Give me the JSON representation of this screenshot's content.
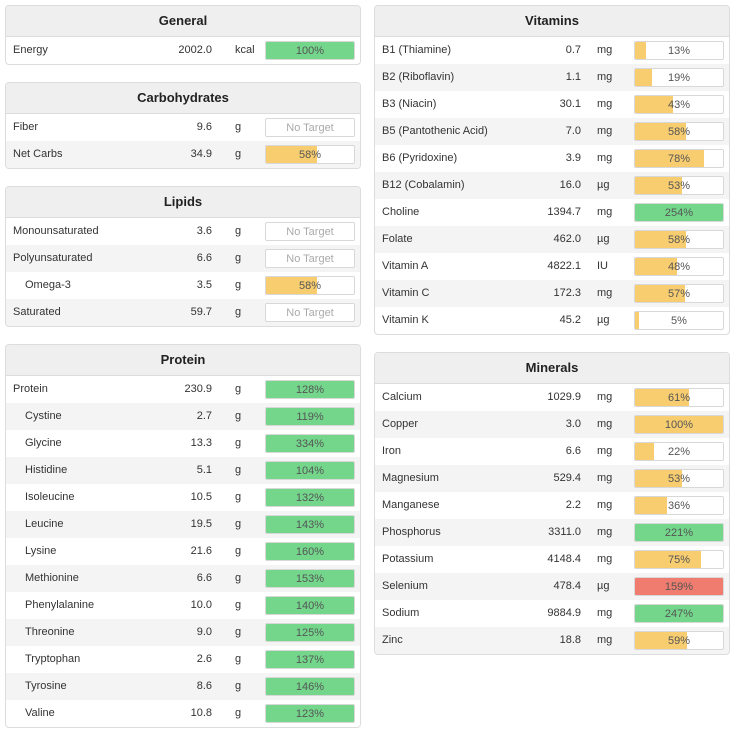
{
  "colors": {
    "green": "#73d68b",
    "yellow": "#f7cd70",
    "red": "#ef7c6e",
    "empty": "#ffffff"
  },
  "panels": [
    {
      "id": "general",
      "title": "General",
      "col": "left",
      "rows": [
        {
          "name": "Energy",
          "value": "2002.0",
          "unit": "kcal",
          "pct": "100%",
          "level": 100,
          "color": "green",
          "indent": false
        }
      ]
    },
    {
      "id": "carbohydrates",
      "title": "Carbohydrates",
      "col": "left",
      "rows": [
        {
          "name": "Fiber",
          "value": "9.6",
          "unit": "g",
          "pct": "No Target",
          "level": 0,
          "color": "empty",
          "indent": false
        },
        {
          "name": "Net Carbs",
          "value": "34.9",
          "unit": "g",
          "pct": "58%",
          "level": 58,
          "color": "yellow",
          "indent": false
        }
      ]
    },
    {
      "id": "lipids",
      "title": "Lipids",
      "col": "left",
      "rows": [
        {
          "name": "Monounsaturated",
          "value": "3.6",
          "unit": "g",
          "pct": "No Target",
          "level": 0,
          "color": "empty",
          "indent": false
        },
        {
          "name": "Polyunsaturated",
          "value": "6.6",
          "unit": "g",
          "pct": "No Target",
          "level": 0,
          "color": "empty",
          "indent": false
        },
        {
          "name": "Omega-3",
          "value": "3.5",
          "unit": "g",
          "pct": "58%",
          "level": 58,
          "color": "yellow",
          "indent": true
        },
        {
          "name": "Saturated",
          "value": "59.7",
          "unit": "g",
          "pct": "No Target",
          "level": 0,
          "color": "empty",
          "indent": false
        }
      ]
    },
    {
      "id": "protein",
      "title": "Protein",
      "col": "left",
      "rows": [
        {
          "name": "Protein",
          "value": "230.9",
          "unit": "g",
          "pct": "128%",
          "level": 100,
          "color": "green",
          "indent": false
        },
        {
          "name": "Cystine",
          "value": "2.7",
          "unit": "g",
          "pct": "119%",
          "level": 100,
          "color": "green",
          "indent": true
        },
        {
          "name": "Glycine",
          "value": "13.3",
          "unit": "g",
          "pct": "334%",
          "level": 100,
          "color": "green",
          "indent": true
        },
        {
          "name": "Histidine",
          "value": "5.1",
          "unit": "g",
          "pct": "104%",
          "level": 100,
          "color": "green",
          "indent": true
        },
        {
          "name": "Isoleucine",
          "value": "10.5",
          "unit": "g",
          "pct": "132%",
          "level": 100,
          "color": "green",
          "indent": true
        },
        {
          "name": "Leucine",
          "value": "19.5",
          "unit": "g",
          "pct": "143%",
          "level": 100,
          "color": "green",
          "indent": true
        },
        {
          "name": "Lysine",
          "value": "21.6",
          "unit": "g",
          "pct": "160%",
          "level": 100,
          "color": "green",
          "indent": true
        },
        {
          "name": "Methionine",
          "value": "6.6",
          "unit": "g",
          "pct": "153%",
          "level": 100,
          "color": "green",
          "indent": true
        },
        {
          "name": "Phenylalanine",
          "value": "10.0",
          "unit": "g",
          "pct": "140%",
          "level": 100,
          "color": "green",
          "indent": true
        },
        {
          "name": "Threonine",
          "value": "9.0",
          "unit": "g",
          "pct": "125%",
          "level": 100,
          "color": "green",
          "indent": true
        },
        {
          "name": "Tryptophan",
          "value": "2.6",
          "unit": "g",
          "pct": "137%",
          "level": 100,
          "color": "green",
          "indent": true
        },
        {
          "name": "Tyrosine",
          "value": "8.6",
          "unit": "g",
          "pct": "146%",
          "level": 100,
          "color": "green",
          "indent": true
        },
        {
          "name": "Valine",
          "value": "10.8",
          "unit": "g",
          "pct": "123%",
          "level": 100,
          "color": "green",
          "indent": true
        }
      ]
    },
    {
      "id": "vitamins",
      "title": "Vitamins",
      "col": "right",
      "rows": [
        {
          "name": "B1 (Thiamine)",
          "value": "0.7",
          "unit": "mg",
          "pct": "13%",
          "level": 13,
          "color": "yellow",
          "indent": false
        },
        {
          "name": "B2 (Riboflavin)",
          "value": "1.1",
          "unit": "mg",
          "pct": "19%",
          "level": 19,
          "color": "yellow",
          "indent": false
        },
        {
          "name": "B3 (Niacin)",
          "value": "30.1",
          "unit": "mg",
          "pct": "43%",
          "level": 43,
          "color": "yellow",
          "indent": false
        },
        {
          "name": "B5 (Pantothenic Acid)",
          "value": "7.0",
          "unit": "mg",
          "pct": "58%",
          "level": 58,
          "color": "yellow",
          "indent": false
        },
        {
          "name": "B6 (Pyridoxine)",
          "value": "3.9",
          "unit": "mg",
          "pct": "78%",
          "level": 78,
          "color": "yellow",
          "indent": false
        },
        {
          "name": "B12 (Cobalamin)",
          "value": "16.0",
          "unit": "µg",
          "pct": "53%",
          "level": 53,
          "color": "yellow",
          "indent": false
        },
        {
          "name": "Choline",
          "value": "1394.7",
          "unit": "mg",
          "pct": "254%",
          "level": 100,
          "color": "green",
          "indent": false
        },
        {
          "name": "Folate",
          "value": "462.0",
          "unit": "µg",
          "pct": "58%",
          "level": 58,
          "color": "yellow",
          "indent": false
        },
        {
          "name": "Vitamin A",
          "value": "4822.1",
          "unit": "IU",
          "pct": "48%",
          "level": 48,
          "color": "yellow",
          "indent": false
        },
        {
          "name": "Vitamin C",
          "value": "172.3",
          "unit": "mg",
          "pct": "57%",
          "level": 57,
          "color": "yellow",
          "indent": false
        },
        {
          "name": "Vitamin K",
          "value": "45.2",
          "unit": "µg",
          "pct": "5%",
          "level": 5,
          "color": "yellow",
          "indent": false
        }
      ]
    },
    {
      "id": "minerals",
      "title": "Minerals",
      "col": "right",
      "rows": [
        {
          "name": "Calcium",
          "value": "1029.9",
          "unit": "mg",
          "pct": "61%",
          "level": 61,
          "color": "yellow",
          "indent": false
        },
        {
          "name": "Copper",
          "value": "3.0",
          "unit": "mg",
          "pct": "100%",
          "level": 100,
          "color": "yellow",
          "indent": false
        },
        {
          "name": "Iron",
          "value": "6.6",
          "unit": "mg",
          "pct": "22%",
          "level": 22,
          "color": "yellow",
          "indent": false
        },
        {
          "name": "Magnesium",
          "value": "529.4",
          "unit": "mg",
          "pct": "53%",
          "level": 53,
          "color": "yellow",
          "indent": false
        },
        {
          "name": "Manganese",
          "value": "2.2",
          "unit": "mg",
          "pct": "36%",
          "level": 36,
          "color": "yellow",
          "indent": false
        },
        {
          "name": "Phosphorus",
          "value": "3311.0",
          "unit": "mg",
          "pct": "221%",
          "level": 100,
          "color": "green",
          "indent": false
        },
        {
          "name": "Potassium",
          "value": "4148.4",
          "unit": "mg",
          "pct": "75%",
          "level": 75,
          "color": "yellow",
          "indent": false
        },
        {
          "name": "Selenium",
          "value": "478.4",
          "unit": "µg",
          "pct": "159%",
          "level": 100,
          "color": "red",
          "indent": false
        },
        {
          "name": "Sodium",
          "value": "9884.9",
          "unit": "mg",
          "pct": "247%",
          "level": 100,
          "color": "green",
          "indent": false
        },
        {
          "name": "Zinc",
          "value": "18.8",
          "unit": "mg",
          "pct": "59%",
          "level": 59,
          "color": "yellow",
          "indent": false
        }
      ]
    }
  ]
}
